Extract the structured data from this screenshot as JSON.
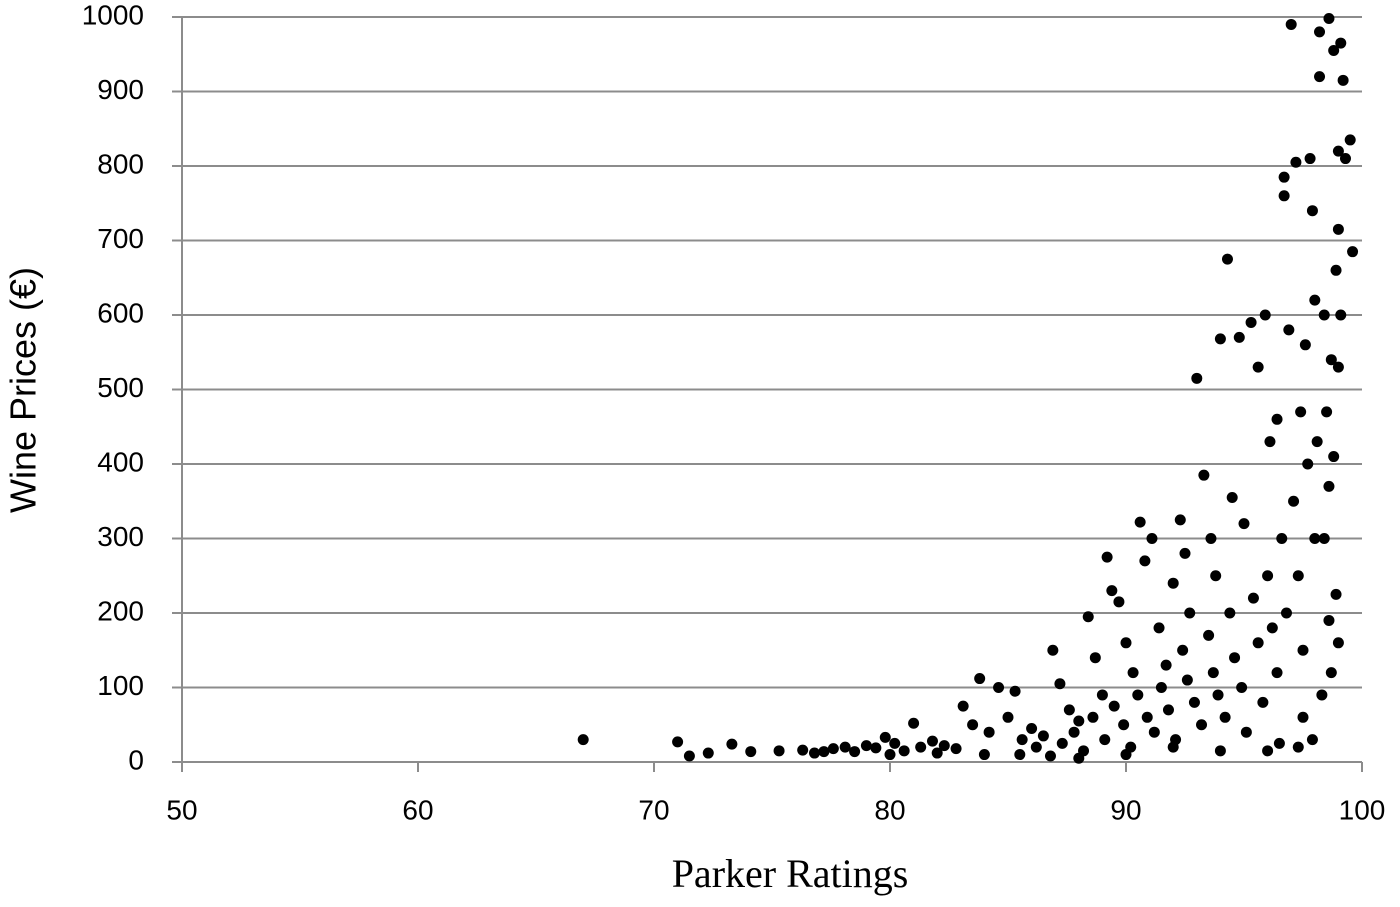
{
  "chart_data": {
    "type": "scatter",
    "xlabel": "Parker Ratings",
    "ylabel": "Wine Prices (€)",
    "color": "#000000",
    "grid": true,
    "xlim": [
      50,
      100
    ],
    "xticks": [
      50,
      60,
      70,
      80,
      90,
      100
    ],
    "ylim": [
      0,
      1000
    ],
    "yticks": [
      0,
      100,
      200,
      300,
      400,
      500,
      600,
      700,
      800,
      900,
      1000
    ],
    "x": [
      67.0,
      71.0,
      71.5,
      72.3,
      73.3,
      74.1,
      75.3,
      76.3,
      76.8,
      77.2,
      77.6,
      78.1,
      78.5,
      79.0,
      79.4,
      79.8,
      80.2,
      80.6,
      81.0,
      81.3,
      81.8,
      82.3,
      82.8,
      83.1,
      83.5,
      83.8,
      84.2,
      84.6,
      85.0,
      85.3,
      85.6,
      86.0,
      86.5,
      86.9,
      87.2,
      87.6,
      88.0,
      88.4,
      88.7,
      89.0,
      89.2,
      89.4,
      89.7,
      90.0,
      90.3,
      90.6,
      90.8,
      91.1,
      91.4,
      91.7,
      92.0,
      92.3,
      92.5,
      92.7,
      93.0,
      93.3,
      93.6,
      93.8,
      94.0,
      94.3,
      94.5,
      94.8,
      95.0,
      95.3,
      95.6,
      95.9,
      96.1,
      96.4,
      96.7,
      96.7,
      96.9,
      97.0,
      97.2,
      97.4,
      97.6,
      97.8,
      97.9,
      98.0,
      98.2,
      98.2,
      98.4,
      98.6,
      98.8,
      99.0,
      99.1,
      99.2,
      99.3,
      99.5,
      99.6,
      99.0,
      98.9,
      99.1,
      98.7,
      99.0,
      98.5,
      98.8,
      98.6,
      98.4,
      98.9,
      98.6,
      99.0,
      98.7,
      98.3,
      97.9,
      97.3,
      96.5,
      96.0,
      85.5,
      86.2,
      86.8,
      87.3,
      87.8,
      88.2,
      88.6,
      89.1,
      89.5,
      89.9,
      90.2,
      90.5,
      90.9,
      91.2,
      91.5,
      91.8,
      92.1,
      92.4,
      92.6,
      92.9,
      93.2,
      93.5,
      93.7,
      93.9,
      94.2,
      94.4,
      94.6,
      94.9,
      95.1,
      95.4,
      95.6,
      95.8,
      96.0,
      96.2,
      96.4,
      96.6,
      96.8,
      97.1,
      97.3,
      97.5,
      97.7,
      98.0,
      98.1,
      97.5,
      92.0,
      90.0,
      88.0,
      94.0,
      84.0,
      82.0,
      80.0
    ],
    "values": [
      30,
      27,
      8,
      12,
      24,
      14,
      15,
      16,
      12,
      14,
      18,
      20,
      14,
      22,
      19,
      33,
      25,
      15,
      52,
      20,
      28,
      22,
      18,
      75,
      50,
      112,
      40,
      100,
      60,
      95,
      30,
      45,
      35,
      150,
      105,
      70,
      55,
      195,
      140,
      90,
      275,
      230,
      215,
      160,
      120,
      322,
      270,
      300,
      180,
      130,
      240,
      325,
      280,
      200,
      515,
      385,
      300,
      250,
      568,
      675,
      355,
      570,
      320,
      590,
      530,
      600,
      430,
      460,
      785,
      760,
      580,
      990,
      805,
      470,
      560,
      810,
      740,
      620,
      980,
      920,
      600,
      998,
      955,
      820,
      965,
      915,
      810,
      835,
      685,
      715,
      660,
      600,
      540,
      530,
      470,
      410,
      370,
      300,
      225,
      190,
      160,
      120,
      90,
      30,
      20,
      25,
      15,
      10,
      20,
      8,
      25,
      40,
      15,
      60,
      30,
      75,
      50,
      20,
      90,
      60,
      40,
      100,
      70,
      30,
      150,
      110,
      80,
      50,
      170,
      120,
      90,
      60,
      200,
      140,
      100,
      40,
      220,
      160,
      80,
      250,
      180,
      120,
      300,
      200,
      350,
      250,
      150,
      400,
      300,
      430,
      60,
      20,
      10,
      5,
      15,
      10,
      12,
      10
    ]
  }
}
